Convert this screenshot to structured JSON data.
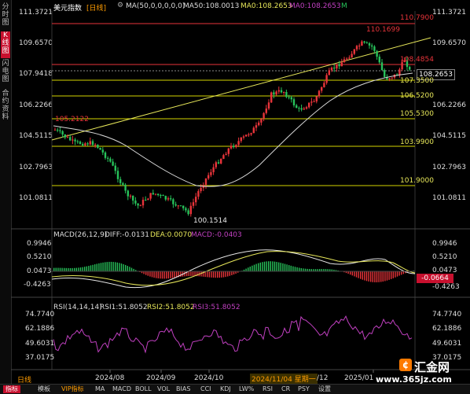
{
  "sidebar": {
    "tabs": [
      {
        "label": "分时图",
        "active": false
      },
      {
        "label": "K线图",
        "active": true
      },
      {
        "label": "闪电图",
        "active": false
      },
      {
        "label": "合约资料",
        "active": false
      }
    ]
  },
  "header": {
    "name": "美元指数",
    "period": "[日线]",
    "ma_label": "MA(50,0,0,0,0,0)",
    "ma50": "MA50:108.0013",
    "ma0a": "MA0:108.2653",
    "ma0b": "MA0:108.2653",
    "m": "M"
  },
  "price_axis": {
    "left": [
      "111.3721",
      "109.6570",
      "107.9418",
      "106.2266",
      "104.5115",
      "102.7963",
      "101.0811"
    ],
    "right": [
      "111.3721",
      "109.6570",
      "106.2266",
      "104.5115",
      "102.7963",
      "101.0811"
    ],
    "current": "108.2653"
  },
  "annotations": {
    "high": "110.1699",
    "left_label": "105.2122",
    "low": "100.1514",
    "levels": [
      "110.7900",
      "108.4854",
      "107.3500",
      "106.5200",
      "105.5300",
      "103.9900",
      "101.9000"
    ]
  },
  "macd": {
    "title": "MACD(26,12,9)",
    "diff": "DIFF:-0.0131",
    "dea": "DEA:0.0070",
    "macd": "MACD:-0.0403",
    "left_ticks": [
      "0.9946",
      "0.5210",
      "0.0473",
      "-0.4263"
    ],
    "right_ticks": [
      "0.9946",
      "0.5210",
      "0.0473",
      "-0.4263"
    ],
    "current": "-0.0664"
  },
  "rsi": {
    "title": "RSI(14,14,14)",
    "rsi1": "RSI1:51.8052",
    "rsi2": "RSI2:51.8052",
    "rsi3": "RSI3:51.8052",
    "left_ticks": [
      "74.7740",
      "62.1886",
      "49.6031",
      "37.0175"
    ],
    "right_ticks": [
      "74.7740",
      "62.1886",
      "49.6031",
      "37.0175"
    ]
  },
  "x_axis": {
    "period": "日线",
    "dates": [
      "2024/08",
      "2024/09",
      "2024/10",
      "2025/01"
    ],
    "crosshair": "2024/11/04 星期一",
    "crosshair_tail": "/12"
  },
  "toolbar": {
    "tabs": [
      {
        "label": "指标",
        "active": true
      },
      {
        "label": "模板",
        "active": false
      },
      {
        "label": "VIP指标",
        "active": false
      },
      {
        "label": "MA",
        "active": false
      },
      {
        "label": "MACD",
        "active": false
      },
      {
        "label": "BOLL",
        "active": false
      },
      {
        "label": "VOL",
        "active": false
      },
      {
        "label": "BIAS",
        "active": false
      },
      {
        "label": "CCI",
        "active": false
      },
      {
        "label": "KDJ",
        "active": false
      },
      {
        "label": "LW%",
        "active": false
      },
      {
        "label": "RSI",
        "active": false
      },
      {
        "label": "CR",
        "active": false
      },
      {
        "label": "PSY",
        "active": false
      },
      {
        "label": "设置",
        "active": false
      }
    ]
  },
  "watermark": {
    "logo": "汇金网",
    "url": "www.365jz.com"
  },
  "colors": {
    "up": "#e8343a",
    "down": "#27c25a",
    "ma": "#d9d9d9",
    "trend": "#e8e85a",
    "level_yellow": "#d4d400",
    "level_red": "#e8343a",
    "rsi": "#c040c0",
    "dea": "#e8e85a"
  }
}
